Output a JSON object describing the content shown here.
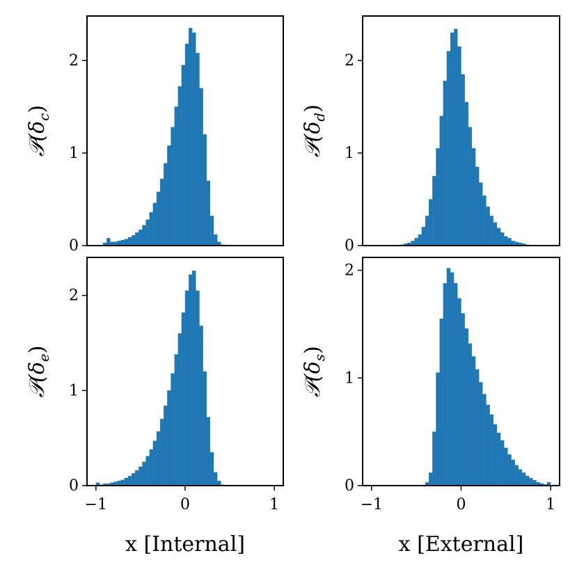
{
  "chart_data": [
    {
      "type": "bar",
      "id": "c",
      "ylabel": {
        "main": "𝒫(δ",
        "sub": "c",
        "close": ")"
      },
      "xlabel": "",
      "xlim": [
        -1.1,
        1.1
      ],
      "ylim": [
        0,
        2.48
      ],
      "xticks": [],
      "yticks": [
        0,
        1,
        2
      ],
      "ytick_labels": [
        "0",
        "1",
        "2"
      ],
      "bin_width": 0.04,
      "x": [
        -0.9,
        -0.86,
        -0.82,
        -0.78,
        -0.74,
        -0.7,
        -0.66,
        -0.62,
        -0.58,
        -0.54,
        -0.5,
        -0.46,
        -0.42,
        -0.38,
        -0.34,
        -0.3,
        -0.26,
        -0.22,
        -0.18,
        -0.14,
        -0.1,
        -0.06,
        -0.02,
        0.02,
        0.06,
        0.1,
        0.14,
        0.18,
        0.22,
        0.26,
        0.3,
        0.34,
        0.38,
        0.42
      ],
      "values": [
        0.03,
        0.08,
        0.04,
        0.04,
        0.05,
        0.06,
        0.07,
        0.09,
        0.11,
        0.14,
        0.17,
        0.22,
        0.28,
        0.36,
        0.46,
        0.58,
        0.72,
        0.89,
        1.08,
        1.28,
        1.5,
        1.72,
        1.95,
        2.18,
        2.35,
        2.3,
        2.08,
        1.7,
        1.2,
        0.7,
        0.32,
        0.12,
        0.04,
        0.01
      ]
    },
    {
      "type": "bar",
      "id": "d",
      "ylabel": {
        "main": "𝒫(δ",
        "sub": "d",
        "close": ")"
      },
      "xlabel": "",
      "xlim": [
        -1.1,
        1.1
      ],
      "ylim": [
        0,
        2.48
      ],
      "xticks": [],
      "yticks": [
        0,
        1,
        2
      ],
      "ytick_labels": [
        "0",
        "1",
        "2"
      ],
      "bin_width": 0.04,
      "x": [
        -0.66,
        -0.62,
        -0.58,
        -0.54,
        -0.5,
        -0.46,
        -0.42,
        -0.38,
        -0.34,
        -0.3,
        -0.26,
        -0.22,
        -0.18,
        -0.14,
        -0.1,
        -0.06,
        -0.02,
        0.02,
        0.06,
        0.1,
        0.14,
        0.18,
        0.22,
        0.26,
        0.3,
        0.34,
        0.38,
        0.42,
        0.46,
        0.5,
        0.54,
        0.58,
        0.62,
        0.66,
        0.7,
        0.74
      ],
      "values": [
        0.01,
        0.02,
        0.03,
        0.05,
        0.08,
        0.12,
        0.2,
        0.32,
        0.5,
        0.75,
        1.05,
        1.4,
        1.78,
        2.1,
        2.3,
        2.34,
        2.15,
        1.85,
        1.55,
        1.28,
        1.05,
        0.85,
        0.68,
        0.54,
        0.42,
        0.32,
        0.25,
        0.19,
        0.14,
        0.1,
        0.08,
        0.05,
        0.04,
        0.03,
        0.02,
        0.01
      ]
    },
    {
      "type": "bar",
      "id": "e",
      "ylabel": {
        "main": "𝒫(δ",
        "sub": "e",
        "close": ")"
      },
      "xlabel": "x [Internal]",
      "xlim": [
        -1.1,
        1.1
      ],
      "ylim": [
        0,
        2.4
      ],
      "xticks": [
        -1,
        0,
        1
      ],
      "xtick_labels": [
        "−1",
        "0",
        "1"
      ],
      "yticks": [
        0,
        1,
        2
      ],
      "ytick_labels": [
        "0",
        "1",
        "2"
      ],
      "bin_width": 0.04,
      "x": [
        -0.98,
        -0.94,
        -0.9,
        -0.86,
        -0.82,
        -0.78,
        -0.74,
        -0.7,
        -0.66,
        -0.62,
        -0.58,
        -0.54,
        -0.5,
        -0.46,
        -0.42,
        -0.38,
        -0.34,
        -0.3,
        -0.26,
        -0.22,
        -0.18,
        -0.14,
        -0.1,
        -0.06,
        -0.02,
        0.02,
        0.06,
        0.1,
        0.14,
        0.18,
        0.22,
        0.26,
        0.3,
        0.34,
        0.38,
        0.42
      ],
      "values": [
        0.03,
        0.01,
        0.02,
        0.02,
        0.03,
        0.04,
        0.05,
        0.06,
        0.08,
        0.1,
        0.13,
        0.16,
        0.2,
        0.25,
        0.31,
        0.38,
        0.47,
        0.57,
        0.7,
        0.84,
        1.0,
        1.18,
        1.38,
        1.6,
        1.82,
        2.05,
        2.22,
        2.26,
        2.05,
        1.68,
        1.2,
        0.72,
        0.35,
        0.14,
        0.05,
        0.01
      ]
    },
    {
      "type": "bar",
      "id": "s",
      "ylabel": {
        "main": "𝒫(δ",
        "sub": "s",
        "close": ")"
      },
      "xlabel": "x [External]",
      "xlim": [
        -1.1,
        1.1
      ],
      "ylim": [
        0,
        2.12
      ],
      "xticks": [
        -1,
        0,
        1
      ],
      "xtick_labels": [
        "−1",
        "0",
        "1"
      ],
      "yticks": [
        0,
        1,
        2
      ],
      "ytick_labels": [
        "0",
        "1",
        "2"
      ],
      "bin_width": 0.04,
      "x": [
        -0.38,
        -0.34,
        -0.3,
        -0.26,
        -0.22,
        -0.18,
        -0.14,
        -0.1,
        -0.06,
        -0.02,
        0.02,
        0.06,
        0.1,
        0.14,
        0.18,
        0.22,
        0.26,
        0.3,
        0.34,
        0.38,
        0.42,
        0.46,
        0.5,
        0.54,
        0.58,
        0.62,
        0.66,
        0.7,
        0.74,
        0.78,
        0.82,
        0.86,
        0.9,
        0.94,
        0.98
      ],
      "values": [
        0.03,
        0.12,
        0.5,
        1.05,
        1.55,
        1.88,
        2.02,
        1.98,
        1.88,
        1.74,
        1.6,
        1.46,
        1.32,
        1.2,
        1.08,
        0.96,
        0.85,
        0.75,
        0.66,
        0.57,
        0.49,
        0.42,
        0.35,
        0.29,
        0.24,
        0.19,
        0.15,
        0.12,
        0.09,
        0.07,
        0.05,
        0.03,
        0.02,
        0.01,
        0.03
      ]
    }
  ]
}
